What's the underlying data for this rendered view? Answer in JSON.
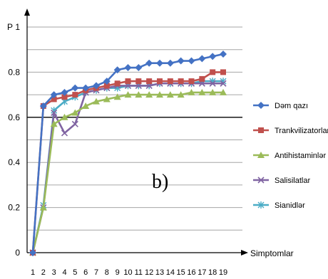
{
  "chart_data": {
    "type": "line",
    "ylabel": "P",
    "xlabel": "Simptomlar",
    "panel_label": "b)",
    "ylim": [
      0,
      1
    ],
    "xlim": [
      1,
      19
    ],
    "y_ticks": [
      "0",
      "0.2",
      "0.4",
      "0.6",
      "0.8",
      "1"
    ],
    "x": [
      1,
      2,
      3,
      4,
      5,
      6,
      7,
      8,
      9,
      10,
      11,
      12,
      13,
      14,
      15,
      16,
      17,
      18,
      19
    ],
    "legend_position": "right",
    "grid": "horizontal",
    "series": [
      {
        "name": "Dəm qazı",
        "color": "#4472C4",
        "marker": "diamond",
        "values": [
          0.0,
          0.65,
          0.7,
          0.71,
          0.73,
          0.73,
          0.74,
          0.76,
          0.81,
          0.82,
          0.82,
          0.84,
          0.84,
          0.84,
          0.85,
          0.85,
          0.86,
          0.87,
          0.88
        ]
      },
      {
        "name": "Trankvilizatorlar",
        "color": "#C0504D",
        "marker": "square",
        "values": [
          0.0,
          0.65,
          0.68,
          0.69,
          0.7,
          0.72,
          0.73,
          0.74,
          0.75,
          0.76,
          0.76,
          0.76,
          0.76,
          0.76,
          0.76,
          0.76,
          0.77,
          0.8,
          0.8
        ]
      },
      {
        "name": "Antihistaminlər",
        "color": "#9BBB59",
        "marker": "triangle",
        "values": [
          0.0,
          0.2,
          0.57,
          0.6,
          0.62,
          0.65,
          0.67,
          0.68,
          0.69,
          0.7,
          0.7,
          0.7,
          0.7,
          0.7,
          0.7,
          0.71,
          0.71,
          0.71,
          0.71
        ]
      },
      {
        "name": "Salisilatlar",
        "color": "#8064A2",
        "marker": "x",
        "values": [
          0.0,
          0.2,
          0.62,
          0.53,
          0.57,
          0.71,
          0.72,
          0.73,
          0.74,
          0.74,
          0.74,
          0.74,
          0.75,
          0.75,
          0.75,
          0.75,
          0.75,
          0.75,
          0.75
        ]
      },
      {
        "name": "Sianidlər",
        "color": "#4BACC6",
        "marker": "star",
        "values": [
          0.0,
          0.21,
          0.63,
          0.67,
          0.69,
          0.71,
          0.72,
          0.73,
          0.73,
          0.74,
          0.74,
          0.74,
          0.75,
          0.75,
          0.75,
          0.75,
          0.76,
          0.76,
          0.76
        ]
      }
    ]
  }
}
